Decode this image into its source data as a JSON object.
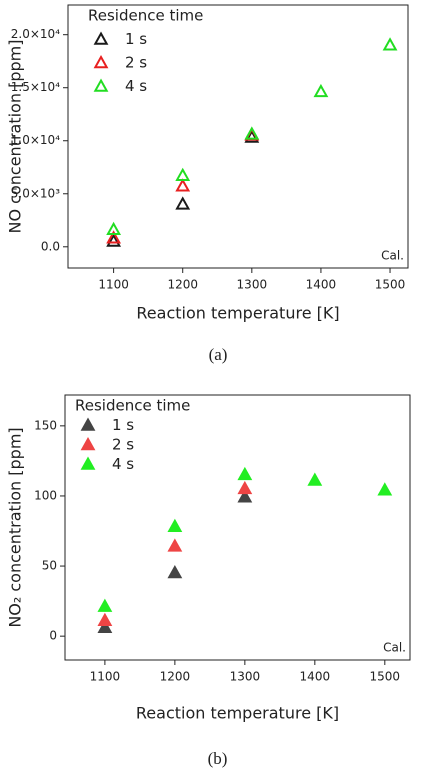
{
  "chart_data": [
    {
      "type": "scatter",
      "marker": "triangle",
      "filled": false,
      "x_label": "Reaction temperature [K]",
      "y_label": "NO concentration [ppm]",
      "legend_title": "Residence time",
      "legend": "upper left",
      "annotation": "Cal.",
      "caption": "(a)",
      "x": [
        1100,
        1200,
        1300,
        1400,
        1500
      ],
      "series": [
        {
          "name": "1 s",
          "color": "#1a1a1a",
          "values": [
            500,
            4000,
            10300,
            null,
            null
          ]
        },
        {
          "name": "2 s",
          "color": "#e82020",
          "values": [
            800,
            5700,
            10500,
            null,
            null
          ]
        },
        {
          "name": "4 s",
          "color": "#22dd22",
          "values": [
            1600,
            6700,
            10600,
            14600,
            19000
          ]
        }
      ],
      "xlim": [
        1034,
        1526
      ],
      "xticks": [
        1100,
        1200,
        1300,
        1400,
        1500
      ],
      "ylim": [
        -2000,
        22800
      ],
      "yticks": [
        {
          "value": 0,
          "label": "0.0"
        },
        {
          "value": 5000,
          "label": "5.0×10³"
        },
        {
          "value": 10000,
          "label": "1.0×10⁴"
        },
        {
          "value": 15000,
          "label": "1.5×10⁴"
        },
        {
          "value": 20000,
          "label": "2.0×10⁴"
        }
      ]
    },
    {
      "type": "scatter",
      "marker": "triangle",
      "filled": true,
      "x_label": "Reaction temperature [K]",
      "y_label": "NO₂ concentration [ppm]",
      "legend_title": "Residence time",
      "legend": "upper left",
      "annotation": "Cal.",
      "caption": "(b)",
      "x": [
        1100,
        1200,
        1300,
        1400,
        1500
      ],
      "series": [
        {
          "name": "1 s",
          "color": "#444444",
          "values": [
            6,
            45,
            99,
            null,
            null
          ]
        },
        {
          "name": "2 s",
          "color": "#ee4444",
          "values": [
            11,
            64,
            105,
            null,
            null
          ]
        },
        {
          "name": "4 s",
          "color": "#22ee22",
          "values": [
            21,
            78,
            115,
            111,
            104
          ]
        }
      ],
      "xlim": [
        1043,
        1536
      ],
      "xticks": [
        1100,
        1200,
        1300,
        1400,
        1500
      ],
      "ylim": [
        -17,
        172
      ],
      "yticks": [
        0,
        50,
        100,
        150
      ]
    }
  ]
}
